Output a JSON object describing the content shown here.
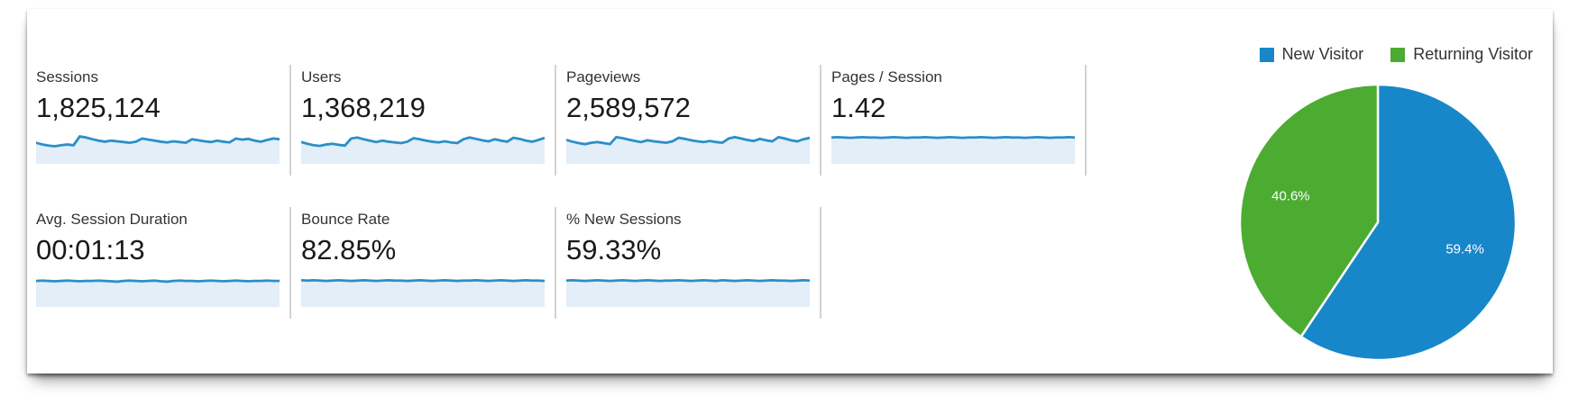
{
  "metrics": {
    "cards": [
      {
        "label": "Sessions",
        "value": "1,825,124"
      },
      {
        "label": "Users",
        "value": "1,368,219"
      },
      {
        "label": "Pageviews",
        "value": "2,589,572"
      },
      {
        "label": "Pages / Session",
        "value": "1.42"
      },
      {
        "label": "Avg. Session Duration",
        "value": "00:01:13"
      },
      {
        "label": "Bounce Rate",
        "value": "82.85%"
      },
      {
        "label": "% New Sessions",
        "value": "59.33%"
      }
    ]
  },
  "legend": {
    "items": [
      {
        "label": "New Visitor",
        "color": "#1787c9"
      },
      {
        "label": "Returning Visitor",
        "color": "#4cab31"
      }
    ]
  },
  "colors": {
    "spark_line": "#2b8fc8",
    "spark_fill": "#e3eef8",
    "divider": "#d2d2d2",
    "pie_blue": "#1787c9",
    "pie_green": "#4cab31"
  },
  "chart_data": [
    {
      "type": "pie",
      "labels": [
        "New Visitor",
        "Returning Visitor"
      ],
      "values": [
        59.4,
        40.6
      ],
      "data_labels": [
        "59.4%",
        "40.6%"
      ],
      "colors": [
        "#1787c9",
        "#4cab31"
      ],
      "start_angle_deg": 0,
      "direction": "clockwise",
      "legend_position": "top-right",
      "slice_gap_color": "#ffffff"
    },
    {
      "type": "area",
      "name": "Sessions",
      "y_scale": "relative-0-1",
      "color": "#2b8fc8",
      "fill": "#e3eef8",
      "values": [
        0.6,
        0.55,
        0.52,
        0.5,
        0.53,
        0.55,
        0.53,
        0.78,
        0.75,
        0.7,
        0.66,
        0.63,
        0.66,
        0.64,
        0.62,
        0.6,
        0.63,
        0.72,
        0.69,
        0.66,
        0.63,
        0.61,
        0.64,
        0.62,
        0.6,
        0.7,
        0.67,
        0.64,
        0.62,
        0.66,
        0.63,
        0.61,
        0.72,
        0.69,
        0.71,
        0.66,
        0.63,
        0.68,
        0.72,
        0.7
      ]
    },
    {
      "type": "area",
      "name": "Users",
      "y_scale": "relative-0-1",
      "color": "#2b8fc8",
      "fill": "#e3eef8",
      "values": [
        0.62,
        0.57,
        0.53,
        0.51,
        0.55,
        0.57,
        0.54,
        0.52,
        0.72,
        0.75,
        0.7,
        0.66,
        0.62,
        0.66,
        0.63,
        0.61,
        0.59,
        0.63,
        0.73,
        0.7,
        0.66,
        0.63,
        0.61,
        0.64,
        0.61,
        0.59,
        0.7,
        0.75,
        0.71,
        0.67,
        0.64,
        0.7,
        0.66,
        0.63,
        0.74,
        0.71,
        0.66,
        0.63,
        0.68,
        0.74
      ]
    },
    {
      "type": "area",
      "name": "Pageviews",
      "y_scale": "relative-0-1",
      "color": "#2b8fc8",
      "fill": "#e3eef8",
      "values": [
        0.68,
        0.63,
        0.59,
        0.56,
        0.6,
        0.62,
        0.59,
        0.56,
        0.76,
        0.73,
        0.69,
        0.65,
        0.62,
        0.67,
        0.64,
        0.62,
        0.6,
        0.64,
        0.74,
        0.71,
        0.67,
        0.64,
        0.62,
        0.65,
        0.62,
        0.6,
        0.72,
        0.76,
        0.72,
        0.68,
        0.65,
        0.71,
        0.67,
        0.64,
        0.76,
        0.72,
        0.67,
        0.64,
        0.7,
        0.74
      ]
    },
    {
      "type": "area",
      "name": "Pages / Session",
      "y_scale": "relative-0-1",
      "color": "#2b8fc8",
      "fill": "#e3eef8",
      "values": [
        0.75,
        0.76,
        0.75,
        0.74,
        0.75,
        0.76,
        0.75,
        0.75,
        0.74,
        0.75,
        0.76,
        0.75,
        0.74,
        0.75,
        0.75,
        0.76,
        0.75,
        0.74,
        0.75,
        0.76,
        0.75,
        0.74,
        0.75,
        0.75,
        0.76,
        0.75,
        0.74,
        0.75,
        0.76,
        0.75,
        0.75,
        0.74,
        0.75,
        0.76,
        0.75,
        0.74,
        0.75,
        0.75,
        0.76,
        0.75
      ]
    },
    {
      "type": "area",
      "name": "Avg. Session Duration",
      "y_scale": "relative-0-1",
      "color": "#2b8fc8",
      "fill": "#e3eef8",
      "values": [
        0.74,
        0.75,
        0.74,
        0.73,
        0.74,
        0.75,
        0.74,
        0.73,
        0.74,
        0.74,
        0.75,
        0.74,
        0.73,
        0.72,
        0.74,
        0.75,
        0.74,
        0.73,
        0.74,
        0.75,
        0.73,
        0.72,
        0.74,
        0.75,
        0.74,
        0.74,
        0.73,
        0.74,
        0.75,
        0.74,
        0.73,
        0.74,
        0.75,
        0.74,
        0.73,
        0.74,
        0.74,
        0.75,
        0.74,
        0.74
      ]
    },
    {
      "type": "area",
      "name": "Bounce Rate",
      "y_scale": "relative-0-1",
      "color": "#2b8fc8",
      "fill": "#e3eef8",
      "values": [
        0.76,
        0.75,
        0.76,
        0.75,
        0.74,
        0.75,
        0.76,
        0.75,
        0.74,
        0.75,
        0.76,
        0.75,
        0.74,
        0.75,
        0.76,
        0.75,
        0.75,
        0.74,
        0.75,
        0.76,
        0.75,
        0.74,
        0.75,
        0.76,
        0.75,
        0.74,
        0.75,
        0.75,
        0.76,
        0.75,
        0.74,
        0.75,
        0.76,
        0.75,
        0.74,
        0.75,
        0.76,
        0.75,
        0.75,
        0.74
      ]
    },
    {
      "type": "area",
      "name": "% New Sessions",
      "y_scale": "relative-0-1",
      "color": "#2b8fc8",
      "fill": "#e3eef8",
      "values": [
        0.75,
        0.76,
        0.75,
        0.74,
        0.75,
        0.76,
        0.75,
        0.74,
        0.75,
        0.76,
        0.75,
        0.74,
        0.75,
        0.76,
        0.75,
        0.74,
        0.75,
        0.75,
        0.76,
        0.75,
        0.74,
        0.75,
        0.76,
        0.75,
        0.74,
        0.76,
        0.75,
        0.74,
        0.75,
        0.76,
        0.75,
        0.74,
        0.75,
        0.76,
        0.75,
        0.75,
        0.74,
        0.75,
        0.76,
        0.75
      ]
    }
  ]
}
